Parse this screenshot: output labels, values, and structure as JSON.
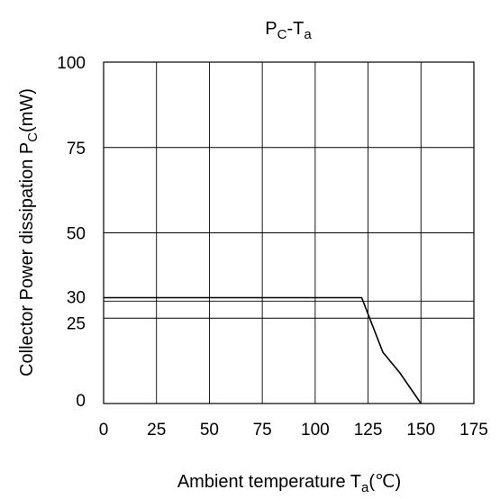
{
  "chart_data": {
    "type": "line",
    "title": {
      "main": "P",
      "sub1": "C",
      "mid": "-T",
      "sub2": "a"
    },
    "xlabel": {
      "main": "Ambient temperature T",
      "sub": "a",
      "unit": "(℃)"
    },
    "ylabel": {
      "main": "Collector Power dissipation P",
      "sub": "C",
      "unit": "(mW)"
    },
    "xlim": [
      0,
      175
    ],
    "ylim": [
      0,
      100
    ],
    "x_ticks": [
      "0",
      "25",
      "50",
      "75",
      "100",
      "125",
      "150",
      "175"
    ],
    "y_ticks": [
      "0",
      "25",
      "50",
      "75",
      "100"
    ],
    "y_extra_ticks": [
      "30"
    ],
    "grid": true,
    "series": [
      {
        "x": [
          0,
          122,
          132,
          140,
          150
        ],
        "y": [
          31,
          31,
          15,
          9,
          0
        ]
      }
    ]
  }
}
